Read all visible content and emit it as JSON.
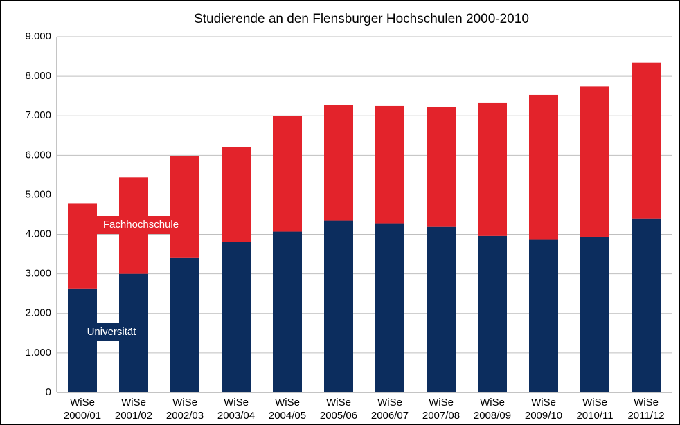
{
  "chart_data": {
    "type": "stacked_bar",
    "title": "Studierende an den Flensburger Hochschulen 2000-2010",
    "categories": [
      [
        "WiSe",
        "2000/01"
      ],
      [
        "WiSe",
        "2001/02"
      ],
      [
        "WiSe",
        "2002/03"
      ],
      [
        "WiSe",
        "2003/04"
      ],
      [
        "WiSe",
        "2004/05"
      ],
      [
        "WiSe",
        "2005/06"
      ],
      [
        "WiSe",
        "2006/07"
      ],
      [
        "WiSe",
        "2007/08"
      ],
      [
        "WiSe",
        "2008/09"
      ],
      [
        "WiSe",
        "2009/10"
      ],
      [
        "WiSe",
        "2010/11"
      ],
      [
        "WiSe",
        "2011/12"
      ]
    ],
    "series": [
      {
        "name": "Universität",
        "color": "#0c2d5e",
        "values": [
          2630,
          3000,
          3400,
          3800,
          4070,
          4350,
          4280,
          4190,
          3960,
          3860,
          3940,
          4400
        ]
      },
      {
        "name": "Fachhochschule",
        "color": "#e3232b",
        "values": [
          2160,
          2440,
          2580,
          2410,
          2930,
          2920,
          2970,
          3030,
          3360,
          3670,
          3810,
          3940
        ]
      }
    ],
    "ylim": [
      0,
      9000
    ],
    "yticks": [
      0,
      {
        "value": 1000,
        "label": "1.000"
      },
      {
        "value": 2000,
        "label": "2.000"
      },
      {
        "value": 3000,
        "label": "3.000"
      },
      {
        "value": 4000,
        "label": "4.000"
      },
      {
        "value": 5000,
        "label": "5.000"
      },
      {
        "value": 6000,
        "label": "6.000"
      },
      {
        "value": 7000,
        "label": "7.000"
      },
      {
        "value": 8000,
        "label": "8.000"
      },
      {
        "value": 9000,
        "label": "9.000"
      }
    ],
    "grid": true
  }
}
